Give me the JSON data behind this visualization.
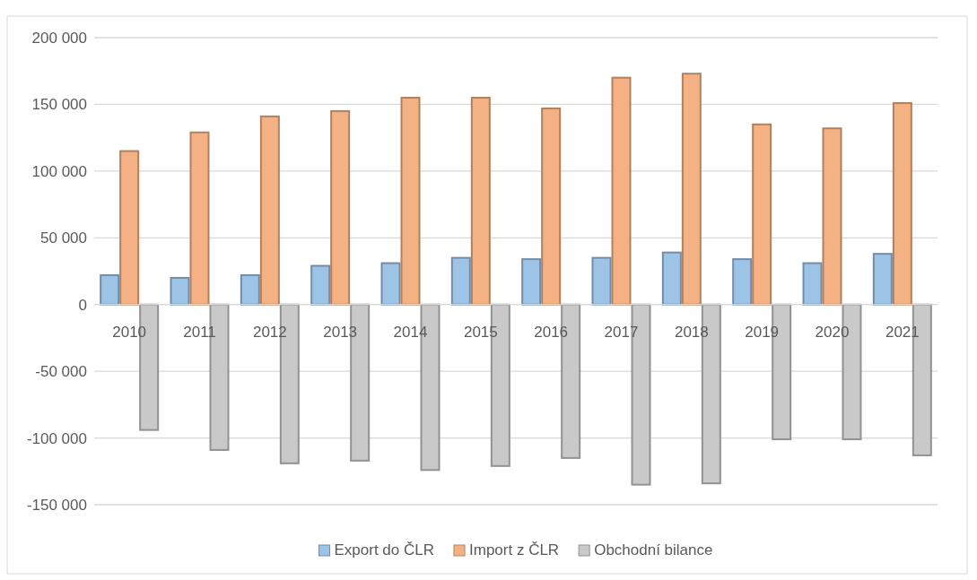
{
  "chart_data": {
    "type": "bar",
    "categories": [
      "2010",
      "2011",
      "2012",
      "2013",
      "2014",
      "2015",
      "2016",
      "2017",
      "2018",
      "2019",
      "2020",
      "2021"
    ],
    "series": [
      {
        "name": "Export do ČLR",
        "color": "#9dc3e6",
        "values": [
          22000,
          20000,
          22000,
          29000,
          31000,
          35000,
          34000,
          35000,
          39000,
          34000,
          31000,
          38000
        ]
      },
      {
        "name": "Import z ČLR",
        "color": "#f4b183",
        "values": [
          115000,
          129000,
          141000,
          145000,
          155000,
          155000,
          147000,
          170000,
          173000,
          135000,
          132000,
          151000
        ]
      },
      {
        "name": "Obchodní bilance",
        "color": "#c9c9c9",
        "values": [
          -94000,
          -109000,
          -119000,
          -117000,
          -124000,
          -121000,
          -115000,
          -135000,
          -134000,
          -101000,
          -101000,
          -113000
        ]
      }
    ],
    "ylim": [
      -150000,
      200000
    ],
    "yticks": [
      {
        "value": -150000,
        "label": "-150 000"
      },
      {
        "value": -100000,
        "label": "-100 000"
      },
      {
        "value": -50000,
        "label": "-50 000"
      },
      {
        "value": 0,
        "label": "0"
      },
      {
        "value": 50000,
        "label": "50 000"
      },
      {
        "value": 100000,
        "label": "100 000"
      },
      {
        "value": 150000,
        "label": "150 000"
      },
      {
        "value": 200000,
        "label": "200 000"
      }
    ],
    "grid": "y",
    "legend": "bottom"
  }
}
